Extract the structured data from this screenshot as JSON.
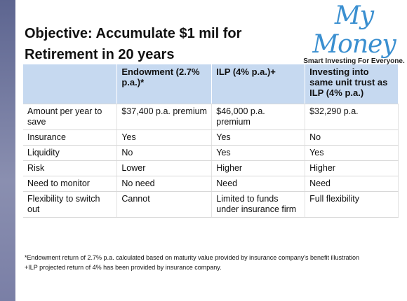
{
  "header": {
    "title": [
      "Objective: Accumulate $1 mil for",
      "Retirement in 20 years"
    ],
    "logo": "My Money",
    "tagline": "Smart Investing For Everyone."
  },
  "table": {
    "columns": [
      "Endowment (2.7% p.a.)*",
      "ILP (4% p.a.)+",
      "Investing into same unit trust as ILP (4% p.a.)"
    ],
    "rows": [
      [
        "Amount per year to save",
        "$37,400 p.a. premium",
        "$46,000 p.a. premium",
        "$32,290 p.a."
      ],
      [
        "Insurance",
        "Yes",
        "Yes",
        "No"
      ],
      [
        "Liquidity",
        "No",
        "Yes",
        "Yes"
      ],
      [
        "Risk",
        "Lower",
        "Higher",
        "Higher"
      ],
      [
        "Need to monitor",
        "No need",
        "Need",
        "Need"
      ],
      [
        "Flexibility to switch out",
        "Cannot",
        "Limited to funds under insurance firm",
        "Full flexibility"
      ]
    ]
  },
  "footnotes": [
    "*Endowment return of 2.7% p.a. calculated based on maturity value provided by insurance company's benefit illustration",
    "+ILP projected return of 4% has been provided by insurance company."
  ]
}
